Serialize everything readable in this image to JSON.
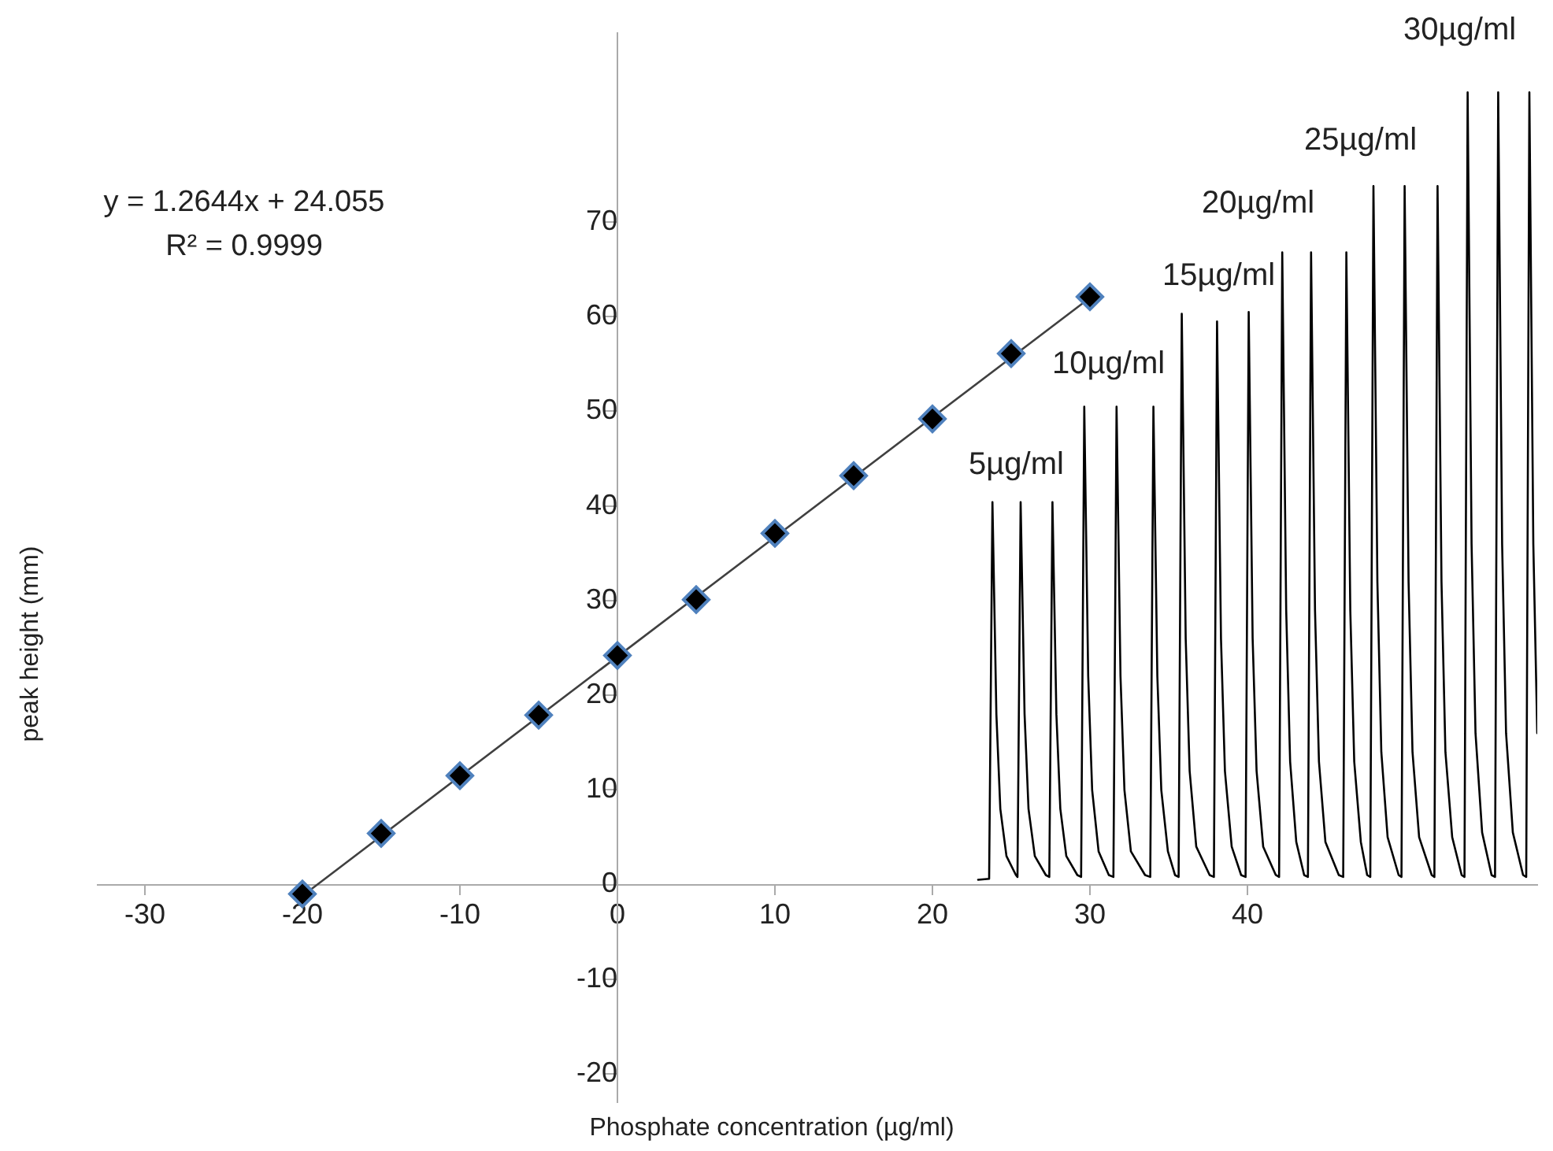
{
  "chart_data": {
    "type": "scatter",
    "xlabel": "Phosphate concentration (µg/ml)",
    "ylabel": "peak height (mm)",
    "xlim": [
      -33,
      58.4
    ],
    "ylim": [
      -23,
      90
    ],
    "xticks": [
      -30,
      -20,
      -10,
      0,
      10,
      20,
      30,
      40
    ],
    "yticks": [
      -20,
      -10,
      0,
      10,
      20,
      30,
      40,
      50,
      60,
      70
    ],
    "grid": false,
    "legend": false,
    "marker": "diamond",
    "series": [
      {
        "color": "#000000",
        "x": [
          -20,
          -15,
          -10,
          -5,
          0,
          5,
          10,
          15,
          20,
          25,
          30
        ],
        "values": [
          -1,
          5.4,
          11.5,
          17.9,
          24.2,
          30.1,
          37.1,
          43.2,
          49.2,
          56.1,
          62.1
        ]
      },
      {
        "type": "line",
        "marker": "none",
        "color": "#404040",
        "x": [
          -20,
          30
        ],
        "values": [
          -1.2,
          62.0
        ]
      },
      {
        "type": "line",
        "marker": "none",
        "color": "#000000",
        "x": [
          22.9,
          23.6,
          23.81,
          24.06,
          24.31,
          24.7,
          25.3,
          25.4,
          25.6,
          25.85,
          26.1,
          26.5,
          27.2,
          27.42,
          27.62,
          27.87,
          28.12,
          28.5,
          29.2,
          29.44,
          29.64,
          29.89,
          30.14,
          30.55,
          31.2,
          31.49,
          31.69,
          31.94,
          32.19,
          32.6,
          33.5,
          33.83,
          34.03,
          34.28,
          34.53,
          34.95,
          35.4,
          35.63,
          35.83,
          36.08,
          36.33,
          36.75,
          37.6,
          37.87,
          38.07,
          38.32,
          38.57,
          39.0,
          39.6,
          39.88,
          40.08,
          40.33,
          40.58,
          41.0,
          41.8,
          42.01,
          42.21,
          42.46,
          42.71,
          43.1,
          43.6,
          43.84,
          44.04,
          44.29,
          44.54,
          44.95,
          45.8,
          46.08,
          46.28,
          46.53,
          46.78,
          47.2,
          47.6,
          47.8,
          48.0,
          48.25,
          48.5,
          48.9,
          49.6,
          49.78,
          49.98,
          50.23,
          50.48,
          50.9,
          51.7,
          51.87,
          52.07,
          52.32,
          52.57,
          53.0,
          53.6,
          53.78,
          53.98,
          54.23,
          54.48,
          54.9,
          55.5,
          55.72,
          55.92,
          56.17,
          56.42,
          56.85,
          57.5,
          57.7,
          57.9,
          58.15,
          58.4
        ],
        "values": [
          0.5,
          0.6,
          40.4,
          18,
          8,
          3,
          1,
          0.8,
          40.4,
          18,
          8,
          3,
          1,
          0.8,
          40.4,
          18,
          8,
          3,
          1,
          0.8,
          50.5,
          22,
          10,
          3.5,
          1,
          0.8,
          50.5,
          22,
          10,
          3.5,
          1,
          0.8,
          50.5,
          22,
          10,
          3.5,
          1,
          0.8,
          60.3,
          26,
          12,
          4,
          1,
          0.8,
          59.5,
          26,
          12,
          4,
          1,
          0.8,
          60.5,
          26,
          12,
          4,
          1,
          0.8,
          66.8,
          29,
          13,
          4.5,
          1,
          0.8,
          66.8,
          29,
          13,
          4.5,
          1,
          0.8,
          66.8,
          29,
          13,
          4.5,
          1,
          0.8,
          73.8,
          32,
          14,
          5,
          1,
          0.8,
          73.8,
          32,
          14,
          5,
          1,
          0.8,
          73.8,
          32,
          14,
          5,
          1,
          0.8,
          83.7,
          36,
          16,
          5.5,
          1,
          0.8,
          83.7,
          36,
          16,
          5.5,
          1,
          0.8,
          83.7,
          36,
          16
        ]
      }
    ],
    "annotations": [
      "y = 1.2644x + 24.055",
      "R² = 0.9999",
      "5µg/ml",
      "10µg/ml",
      "15µg/ml",
      "20µg/ml",
      "25µg/ml",
      "30µg/ml"
    ]
  }
}
